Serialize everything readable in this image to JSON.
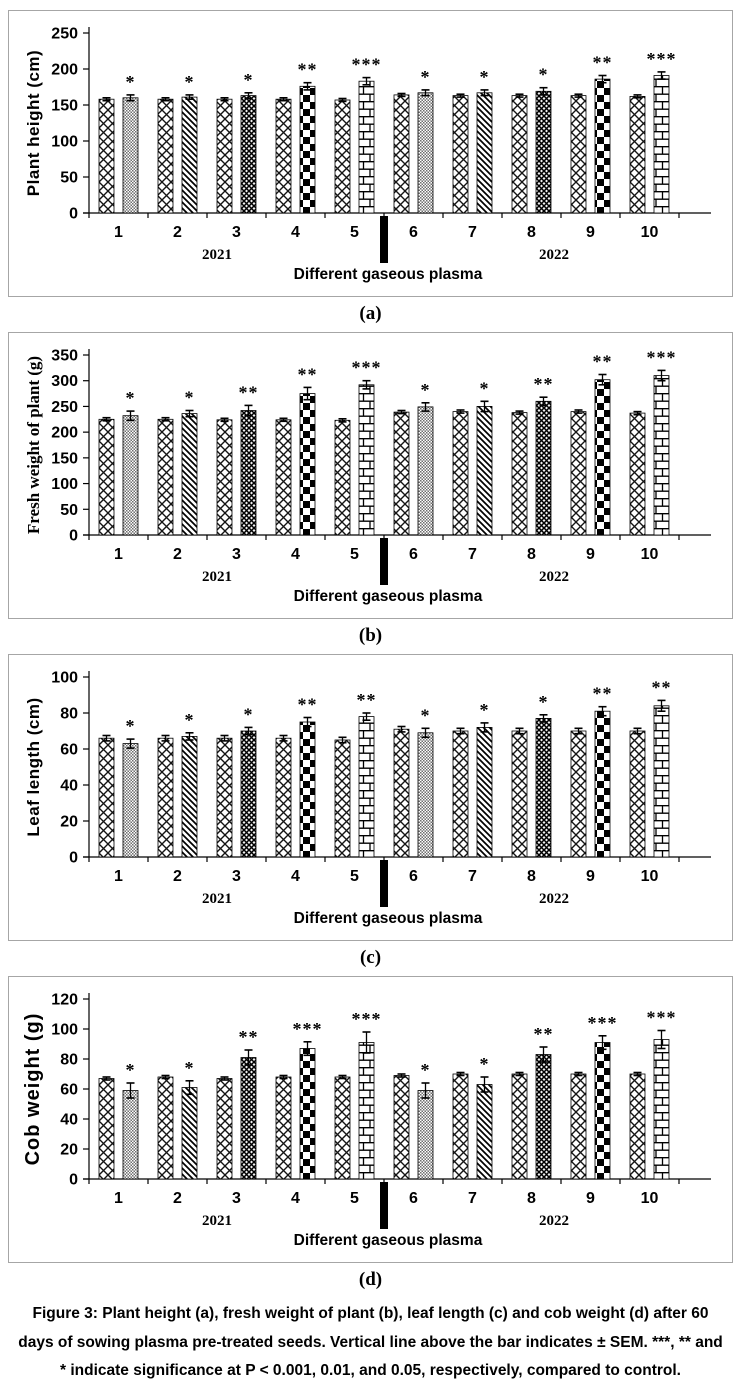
{
  "figure": {
    "caption": "Figure 3: Plant height (a), fresh weight of plant (b), leaf length (c) and cob weight (d) after 60 days of sowing plasma pre-treated seeds. Vertical line above the bar indicates ± SEM. ***, ** and * indicate significance at P < 0.001, 0.01, and 0.05, respectively, compared to control.",
    "colors": {
      "bar_fill": "#ffffff",
      "bar_line": "#000000",
      "gray_texture": "#6e6e6e",
      "panel_border": "#a6a6a6",
      "text": "#000000"
    }
  },
  "chart_data": [
    {
      "type": "bar",
      "panel_label": "(a)",
      "ylabel": "Plant height (cm)",
      "xlabel": "Different gaseous plasma",
      "categories": [
        "1",
        "2",
        "3",
        "4",
        "5",
        "6",
        "7",
        "8",
        "9",
        "10"
      ],
      "year_left": "2021",
      "year_right": "2022",
      "ylim": [
        0,
        250
      ],
      "yticks": [
        0,
        50,
        100,
        150,
        200,
        250
      ],
      "series": [
        {
          "name": "control",
          "pattern": "diamond-lattice",
          "values": [
            158,
            158,
            158,
            158,
            157,
            164,
            163,
            163,
            163,
            162
          ],
          "errors": [
            2,
            2,
            2,
            2,
            2,
            2,
            2,
            2,
            2,
            2
          ]
        },
        {
          "name": "plasma-treated",
          "patterns": [
            "gray-dots",
            "diagonal-stripes",
            "dense-grid",
            "checkerboard",
            "brick",
            "gray-dots",
            "diagonal-stripes",
            "dense-grid",
            "checkerboard",
            "brick"
          ],
          "values": [
            160,
            161,
            163,
            176,
            183,
            167,
            167,
            169,
            186,
            191
          ],
          "errors": [
            4,
            3,
            4,
            5,
            5,
            4,
            4,
            5,
            5,
            5
          ],
          "significance": [
            "*",
            "*",
            "*",
            "**",
            "***",
            "*",
            "*",
            "*",
            "**",
            "***"
          ]
        }
      ],
      "divider_after_category": "5"
    },
    {
      "type": "bar",
      "panel_label": "(b)",
      "ylabel": "Fresh weight of plant (g)",
      "xlabel": "Different gaseous plasma",
      "categories": [
        "1",
        "2",
        "3",
        "4",
        "5",
        "6",
        "7",
        "8",
        "9",
        "10"
      ],
      "year_left": "2021",
      "year_right": "2022",
      "ylim": [
        0,
        350
      ],
      "yticks": [
        0,
        50,
        100,
        150,
        200,
        250,
        300,
        350
      ],
      "series": [
        {
          "name": "control",
          "pattern": "diamond-lattice",
          "values": [
            225,
            225,
            224,
            224,
            223,
            239,
            240,
            238,
            240,
            237
          ],
          "errors": [
            3,
            3,
            3,
            3,
            3,
            3,
            3,
            3,
            3,
            3
          ]
        },
        {
          "name": "plasma-treated",
          "patterns": [
            "gray-dots",
            "diagonal-stripes",
            "dense-grid",
            "checkerboard",
            "brick",
            "gray-dots",
            "diagonal-stripes",
            "dense-grid",
            "checkerboard",
            "brick"
          ],
          "values": [
            232,
            236,
            242,
            275,
            292,
            249,
            250,
            260,
            302,
            310
          ],
          "errors": [
            9,
            6,
            10,
            12,
            8,
            8,
            10,
            8,
            10,
            10
          ],
          "significance": [
            "*",
            "*",
            "**",
            "**",
            "***",
            "*",
            "*",
            "**",
            "**",
            "***"
          ]
        }
      ],
      "divider_after_category": "5"
    },
    {
      "type": "bar",
      "panel_label": "(c)",
      "ylabel": "Leaf length (cm)",
      "xlabel": "Different gaseous plasma",
      "categories": [
        "1",
        "2",
        "3",
        "4",
        "5",
        "6",
        "7",
        "8",
        "9",
        "10"
      ],
      "year_left": "2021",
      "year_right": "2022",
      "ylim": [
        0,
        100
      ],
      "yticks": [
        0,
        20,
        40,
        60,
        80,
        100
      ],
      "series": [
        {
          "name": "control",
          "pattern": "diamond-lattice",
          "values": [
            66,
            66,
            66,
            66,
            65,
            71,
            70,
            70,
            70,
            70
          ],
          "errors": [
            1.5,
            1.5,
            1.5,
            1.5,
            1.5,
            1.5,
            1.5,
            1.5,
            1.5,
            1.5
          ]
        },
        {
          "name": "plasma-treated",
          "patterns": [
            "gray-dots",
            "diagonal-stripes",
            "dense-grid",
            "checkerboard",
            "brick",
            "gray-dots",
            "diagonal-stripes",
            "dense-grid",
            "checkerboard",
            "brick"
          ],
          "values": [
            63,
            67,
            70,
            75,
            78,
            69,
            72,
            77,
            81,
            84
          ],
          "errors": [
            2.5,
            2,
            2,
            2.5,
            2,
            2.5,
            2.5,
            2,
            2.5,
            3
          ],
          "significance": [
            "*",
            "*",
            "*",
            "**",
            "**",
            "*",
            "*",
            "*",
            "**",
            "**"
          ]
        }
      ],
      "divider_after_category": "5"
    },
    {
      "type": "bar",
      "panel_label": "(d)",
      "ylabel": "Cob weight (g)",
      "xlabel": "Different gaseous plasma",
      "categories": [
        "1",
        "2",
        "3",
        "4",
        "5",
        "6",
        "7",
        "8",
        "9",
        "10"
      ],
      "year_left": "2021",
      "year_right": "2022",
      "ylim": [
        0,
        120
      ],
      "yticks": [
        0,
        20,
        40,
        60,
        80,
        100,
        120
      ],
      "series": [
        {
          "name": "control",
          "pattern": "diamond-lattice",
          "values": [
            67,
            68,
            67,
            68,
            68,
            69,
            70,
            70,
            70,
            70
          ],
          "errors": [
            1,
            1,
            1,
            1,
            1,
            1,
            1,
            1,
            1,
            1
          ]
        },
        {
          "name": "plasma-treated",
          "patterns": [
            "gray-dots",
            "diagonal-stripes",
            "dense-grid",
            "checkerboard",
            "brick",
            "gray-dots",
            "diagonal-stripes",
            "dense-grid",
            "checkerboard",
            "brick"
          ],
          "values": [
            59,
            61,
            81,
            87,
            91,
            59,
            63,
            83,
            91,
            93
          ],
          "errors": [
            5,
            4.5,
            5,
            4.5,
            7,
            5,
            5,
            5,
            4.5,
            6
          ],
          "significance": [
            "*",
            "*",
            "**",
            "***",
            "***",
            "*",
            "*",
            "**",
            "***",
            "***"
          ]
        }
      ],
      "divider_after_category": "5"
    }
  ]
}
